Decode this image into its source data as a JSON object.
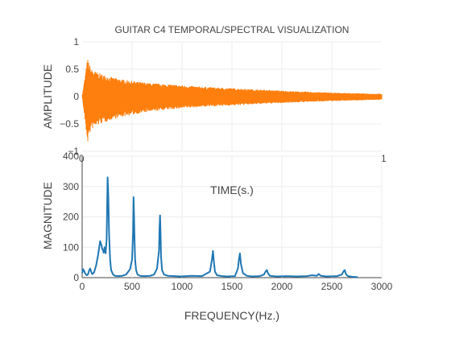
{
  "chart_data": [
    {
      "type": "line",
      "title": "GUITAR C4 TEMPORAL/SPECTRAL VISUALIZATION",
      "ylabel": "AMPLITUDE",
      "ylim": [
        -1,
        1
      ],
      "yticks": [
        "1",
        "0.5",
        "0",
        "−0.5",
        "−1"
      ],
      "ytick_values": [
        1,
        0.5,
        0,
        -0.5,
        -1
      ],
      "xlabel_fragments": [
        "0",
        "1"
      ],
      "series": [
        {
          "color": "#ff7f0e",
          "onset_fraction": 0.018,
          "envelope": {
            "t": [
              0.0,
              0.018,
              0.03,
              0.06,
              0.1,
              0.15,
              0.22,
              0.3,
              0.4,
              0.55,
              0.7,
              0.85,
              1.0
            ],
            "pos": [
              0.0,
              0.7,
              0.5,
              0.42,
              0.35,
              0.3,
              0.25,
              0.22,
              0.18,
              0.14,
              0.1,
              0.07,
              0.05
            ],
            "neg": [
              0.0,
              -0.85,
              -0.6,
              -0.5,
              -0.42,
              -0.35,
              -0.28,
              -0.23,
              -0.19,
              -0.15,
              -0.11,
              -0.08,
              -0.06
            ]
          }
        }
      ]
    },
    {
      "type": "line",
      "xlabel": "FREQUENCY(Hz.)",
      "ylabel": "MAGNITUDE",
      "annotation": "TIME(s.)",
      "xlim": [
        0,
        3000
      ],
      "ylim": [
        0,
        400
      ],
      "xticks": [
        0,
        500,
        1000,
        1500,
        2000,
        2500,
        3000
      ],
      "yticks": [
        0,
        100,
        200,
        300,
        400
      ],
      "series": [
        {
          "color": "#1f77b4",
          "x": [
            0,
            10,
            20,
            30,
            40,
            50,
            60,
            70,
            80,
            90,
            100,
            110,
            120,
            140,
            160,
            180,
            195,
            200,
            210,
            215,
            225,
            235,
            245,
            255,
            262,
            270,
            280,
            290,
            310,
            330,
            360,
            400,
            440,
            480,
            500,
            510,
            515,
            520,
            525,
            530,
            540,
            555,
            580,
            620,
            680,
            720,
            750,
            770,
            775,
            780,
            785,
            790,
            800,
            820,
            860,
            920,
            980,
            1050,
            1100,
            1200,
            1280,
            1300,
            1310,
            1320,
            1330,
            1350,
            1400,
            1450,
            1530,
            1560,
            1570,
            1580,
            1590,
            1610,
            1650,
            1700,
            1780,
            1820,
            1840,
            1850,
            1860,
            1880,
            1950,
            2050,
            2150,
            2250,
            2300,
            2350,
            2370,
            2390,
            2450,
            2550,
            2600,
            2620,
            2630,
            2640,
            2660,
            2700,
            2750,
            2760
          ],
          "y": [
            15,
            28,
            22,
            14,
            10,
            8,
            12,
            24,
            30,
            20,
            12,
            14,
            18,
            40,
            75,
            120,
            105,
            95,
            90,
            82,
            100,
            80,
            125,
            330,
            270,
            140,
            60,
            25,
            10,
            6,
            5,
            6,
            10,
            28,
            60,
            150,
            265,
            200,
            120,
            60,
            25,
            10,
            6,
            5,
            6,
            10,
            30,
            90,
            165,
            205,
            150,
            70,
            25,
            10,
            6,
            5,
            4,
            5,
            6,
            5,
            20,
            60,
            88,
            50,
            20,
            8,
            5,
            4,
            5,
            30,
            60,
            80,
            45,
            15,
            6,
            4,
            5,
            10,
            22,
            25,
            15,
            6,
            4,
            5,
            4,
            5,
            8,
            6,
            12,
            6,
            4,
            5,
            10,
            22,
            25,
            12,
            5,
            3,
            2,
            0
          ]
        }
      ]
    }
  ]
}
